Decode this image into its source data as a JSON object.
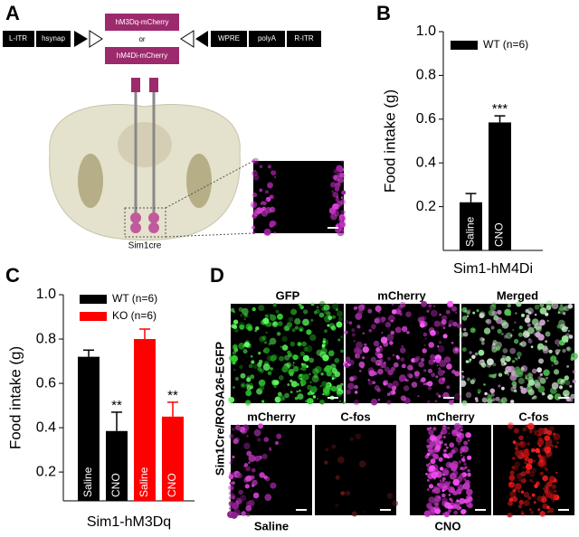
{
  "figure": {
    "panel_labels": [
      "A",
      "B",
      "C",
      "D"
    ],
    "construct": {
      "left": [
        "L-ITR",
        "hsynap"
      ],
      "insert": [
        "hM3Dq-mCherry",
        "or",
        "hM4Di-mCherry"
      ],
      "right": [
        "WPRE",
        "polyA",
        "R-ITR"
      ]
    },
    "region": "Sim1cre",
    "panel_d": {
      "row_label": "Sim1Cre/ROSA26-EGFP",
      "top": [
        "GFP",
        "mCherry",
        "Merged"
      ],
      "bottom": [
        "mCherry",
        "C-fos",
        "mCherry",
        "C-fos"
      ],
      "conditions": [
        "Saline",
        "CNO"
      ]
    }
  },
  "chart_data": [
    {
      "type": "bar",
      "ylabel": "Food intake (g)",
      "xlabel": "Sim1-hM4Di",
      "categories": [
        "Saline",
        "CNO"
      ],
      "series": [
        {
          "name": "WT (n=6)",
          "color": "#000000",
          "values": [
            0.22,
            0.585
          ],
          "errors": [
            0.04,
            0.03
          ]
        }
      ],
      "annotations": [
        {
          "text": "***",
          "series": 0,
          "index": 1
        }
      ],
      "ylim": [
        0,
        1
      ],
      "yticks": [
        0.2,
        0.4,
        0.6,
        0.8,
        {
          "value": 1,
          "label": "1.0"
        }
      ],
      "legend": "upper left"
    },
    {
      "type": "bar",
      "ylabel": "Food intake (g)",
      "xlabel": "Sim1-hM3Dq",
      "categories": [
        "Saline",
        "CNO"
      ],
      "series": [
        {
          "name": "WT (n=6)",
          "color": "#000000",
          "values": [
            0.72,
            0.385
          ],
          "errors": [
            0.03,
            0.085
          ]
        },
        {
          "name": "KO  (n=6)",
          "color": "#ff0000",
          "values": [
            0.8,
            0.45
          ],
          "errors": [
            0.045,
            0.065
          ]
        }
      ],
      "annotations": [
        {
          "text": "**",
          "series": 0,
          "index": 1
        },
        {
          "text": "**",
          "series": 1,
          "index": 1
        }
      ],
      "ylim": [
        0.07,
        1
      ],
      "yticks": [
        0.2,
        0.4,
        0.6,
        0.8,
        {
          "value": 1,
          "label": "1.0"
        }
      ],
      "legend": "upper left"
    }
  ]
}
